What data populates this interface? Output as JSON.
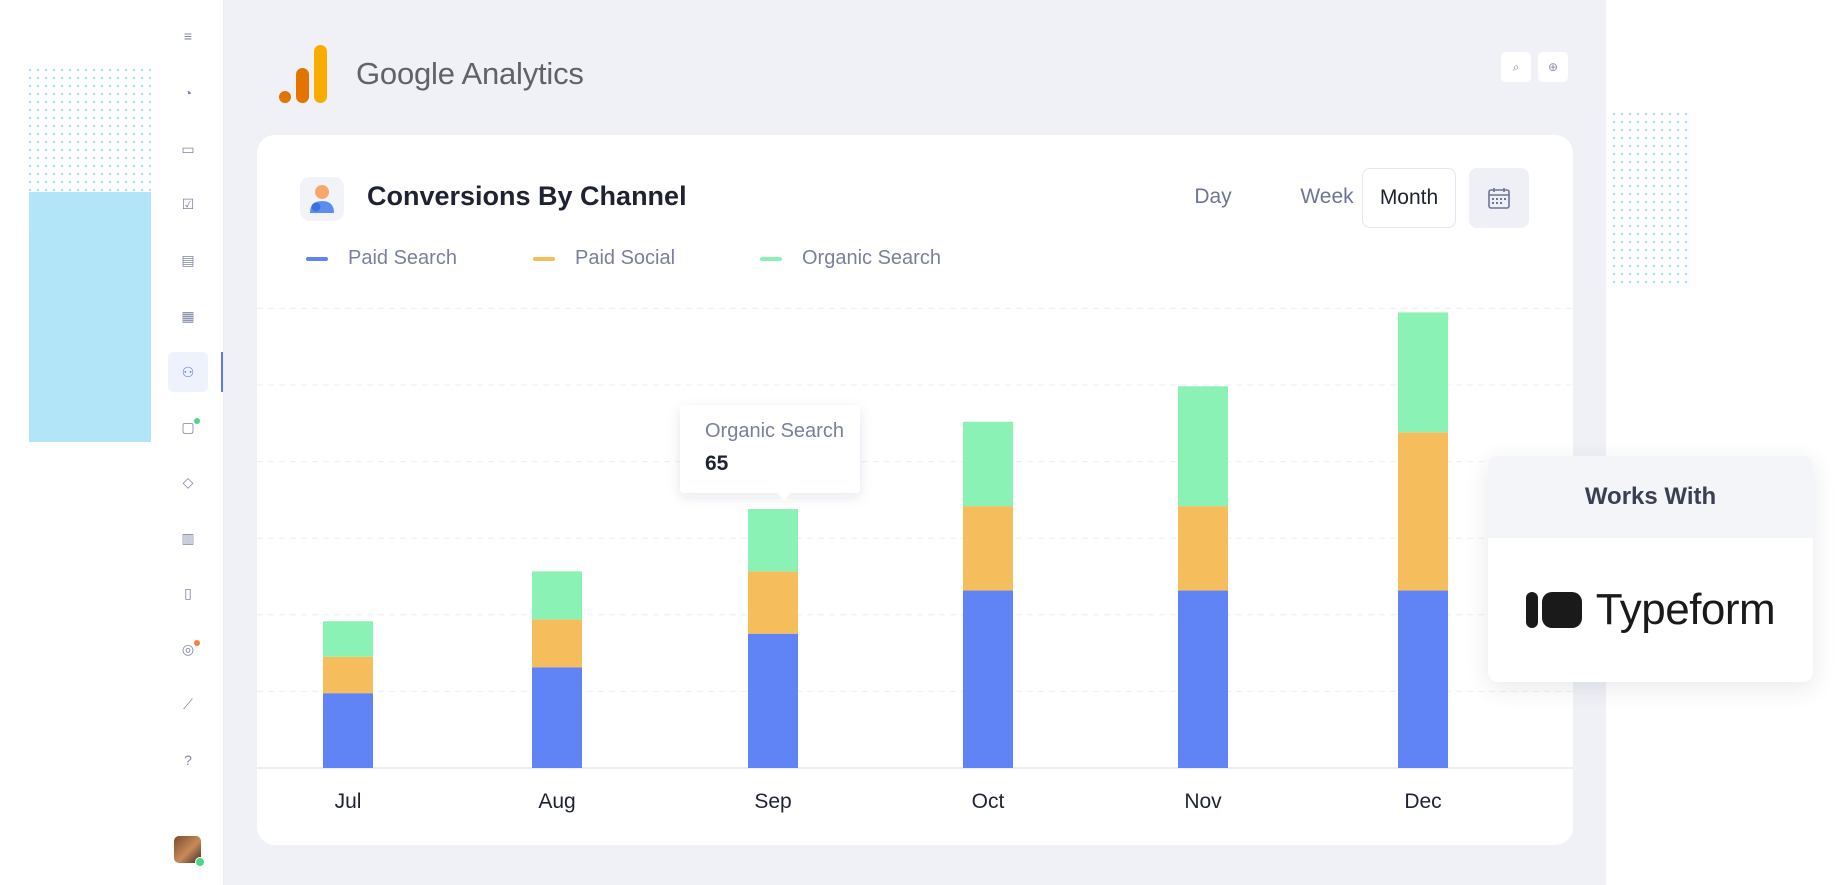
{
  "app": {
    "brand": "Google Analytics",
    "brand_colors": [
      "#f9ab00",
      "#e37400"
    ]
  },
  "sidebar": {
    "items": [
      {
        "icon": "menu-icon",
        "glyph": "≡"
      },
      {
        "icon": "dashboard-gauge-icon",
        "glyph": "◔"
      },
      {
        "icon": "briefcase-icon",
        "glyph": "▭"
      },
      {
        "icon": "clipboard-check-icon",
        "glyph": "☑"
      },
      {
        "icon": "messages-icon",
        "glyph": "▤"
      },
      {
        "icon": "calendar-icon",
        "glyph": "▦"
      },
      {
        "icon": "user-lock-icon",
        "glyph": "⚇",
        "active": true
      },
      {
        "icon": "chat-icon",
        "glyph": "▢",
        "badge_color": "#4bd78b"
      },
      {
        "icon": "box-icon",
        "glyph": "◇"
      },
      {
        "icon": "document-icon",
        "glyph": "▥"
      },
      {
        "icon": "book-icon",
        "glyph": "▯"
      },
      {
        "icon": "target-icon",
        "glyph": "◎",
        "badge_color": "#f5843b"
      },
      {
        "icon": "chart-icon",
        "glyph": "⟋"
      },
      {
        "icon": "help-icon",
        "glyph": "?"
      }
    ]
  },
  "topbar": {
    "buttons": [
      {
        "icon": "search-icon",
        "glyph": "⌕"
      },
      {
        "icon": "add-circle-icon",
        "glyph": "⊕"
      }
    ]
  },
  "card": {
    "title": "Conversions By Channel",
    "periods": [
      "Day",
      "Week",
      "Month"
    ],
    "active_period": "Month"
  },
  "tooltip": {
    "series": "Organic Search",
    "value": "65"
  },
  "works_with": {
    "heading": "Works With",
    "brand": "Typeform"
  },
  "chart_data": {
    "type": "bar",
    "stacked": true,
    "categories": [
      "Jul",
      "Aug",
      "Sep",
      "Oct",
      "Nov",
      "Dec"
    ],
    "series": [
      {
        "name": "Paid Search",
        "color": "#6083f5",
        "values": [
          78,
          105,
          140,
          185,
          185,
          185
        ]
      },
      {
        "name": "Paid Social",
        "color": "#f5bd5c",
        "values": [
          38,
          50,
          65,
          88,
          88,
          165
        ]
      },
      {
        "name": "Organic Search",
        "color": "#8bf2b6",
        "values": [
          37,
          50,
          65,
          88,
          125,
          125
        ]
      }
    ],
    "ylim": [
      0,
      490
    ],
    "grid": true,
    "legend_position": "top-left"
  }
}
